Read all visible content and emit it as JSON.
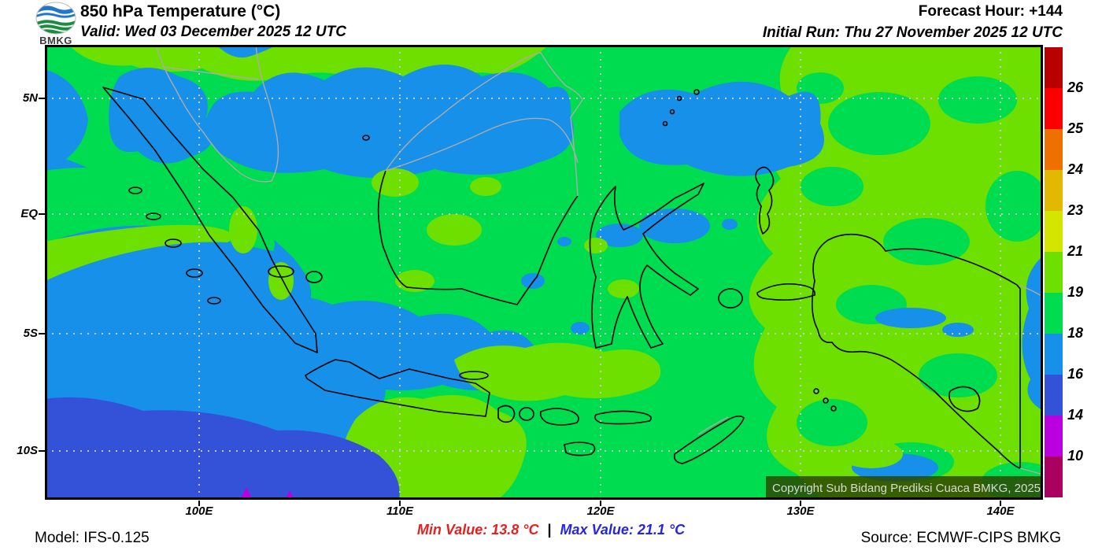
{
  "header": {
    "logo_text": "BMKG",
    "title": "850 hPa Temperature (°C)",
    "valid": "Valid: Wed 03 December 2025 12 UTC",
    "forecast_hour": "Forecast Hour: +144",
    "initial_run": "Initial Run: Thu 27 November 2025 12 UTC"
  },
  "map": {
    "copyright": "Copyright Sub Bidang Prediksi Cuaca BMKG, 2025",
    "x_ticks": [
      "100E",
      "110E",
      "120E",
      "130E",
      "140E"
    ],
    "y_ticks": [
      "5N",
      "EQ",
      "5S",
      "10S"
    ]
  },
  "colorbar": {
    "labels": [
      "26",
      "25",
      "24",
      "23",
      "21",
      "19",
      "18",
      "16",
      "14",
      "10"
    ],
    "colors": [
      "#b80000",
      "#fa0000",
      "#ee7000",
      "#e2b800",
      "#d4e600",
      "#6ee000",
      "#00dc50",
      "#1690e8",
      "#3352d8",
      "#bb00e0",
      "#aa0060"
    ]
  },
  "field_colors": {
    "green_18_19": "#00dc50",
    "chartreuse_19_21": "#6ee000",
    "blue_16_18": "#1690e8",
    "royal_14_16": "#3352d8",
    "magenta_10_14": "#bb00e0"
  },
  "footer": {
    "model": "Model: IFS-0.125",
    "min_value": "Min Value: 13.8 °C",
    "separator": "|",
    "max_value": "Max Value: 21.1 °C",
    "source": "Source: ECMWF-CIPS BMKG"
  }
}
